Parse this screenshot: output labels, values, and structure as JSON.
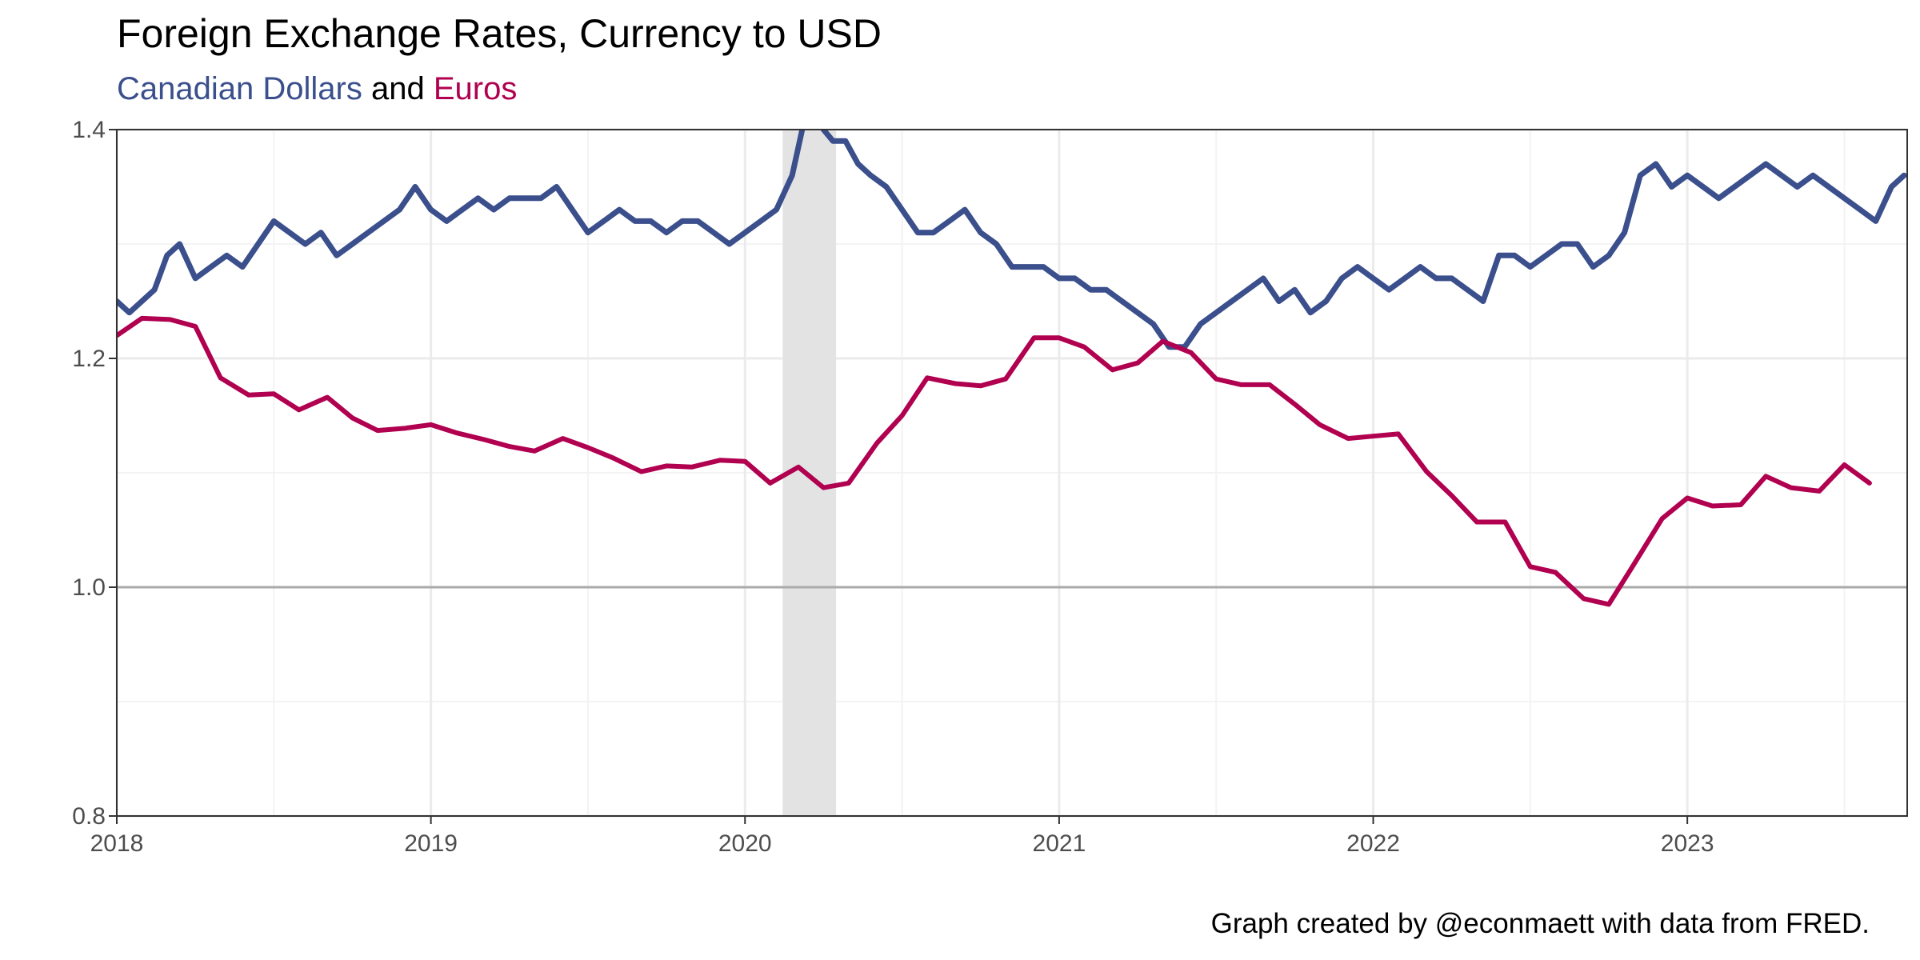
{
  "chart_data": {
    "type": "line",
    "title": "Foreign Exchange Rates, Currency to USD",
    "subtitle": {
      "series_a": "Canadian Dollars",
      "connector": "and",
      "series_b": "Euros"
    },
    "caption": "Graph created by @econmaett with data from FRED.",
    "xlabel": "",
    "ylabel": "",
    "xlim": [
      2018.0,
      2023.7
    ],
    "ylim": [
      0.8,
      1.4
    ],
    "x_ticks": [
      2018,
      2019,
      2020,
      2021,
      2022,
      2023
    ],
    "x_tick_labels": [
      "2018",
      "2019",
      "2020",
      "2021",
      "2022",
      "2023"
    ],
    "y_ticks": [
      0.8,
      1.0,
      1.2,
      1.4
    ],
    "y_tick_labels": [
      "0.8",
      "1.0",
      "1.2",
      "1.4"
    ],
    "reference_line": 1.0,
    "shaded_region": [
      2020.12,
      2020.29
    ],
    "grid": true,
    "legend": "subtitle",
    "colors": {
      "cad": "#3a4f8c",
      "eur": "#b0004f",
      "shade": "#e3e3e3",
      "reference": "#aaaaaa",
      "grid": "#ebebeb"
    },
    "series": [
      {
        "name": "Canadian Dollars",
        "x": [
          2018.0,
          2018.04,
          2018.08,
          2018.12,
          2018.16,
          2018.2,
          2018.25,
          2018.3,
          2018.35,
          2018.4,
          2018.45,
          2018.5,
          2018.55,
          2018.6,
          2018.65,
          2018.7,
          2018.75,
          2018.8,
          2018.85,
          2018.9,
          2018.95,
          2019.0,
          2019.05,
          2019.1,
          2019.15,
          2019.2,
          2019.25,
          2019.3,
          2019.35,
          2019.4,
          2019.45,
          2019.5,
          2019.55,
          2019.6,
          2019.65,
          2019.7,
          2019.75,
          2019.8,
          2019.85,
          2019.9,
          2019.95,
          2020.0,
          2020.05,
          2020.1,
          2020.15,
          2020.19,
          2020.22,
          2020.25,
          2020.28,
          2020.32,
          2020.36,
          2020.4,
          2020.45,
          2020.5,
          2020.55,
          2020.6,
          2020.65,
          2020.7,
          2020.75,
          2020.8,
          2020.85,
          2020.9,
          2020.95,
          2021.0,
          2021.05,
          2021.1,
          2021.15,
          2021.2,
          2021.25,
          2021.3,
          2021.35,
          2021.4,
          2021.45,
          2021.5,
          2021.55,
          2021.6,
          2021.65,
          2021.7,
          2021.75,
          2021.8,
          2021.85,
          2021.9,
          2021.95,
          2022.0,
          2022.05,
          2022.1,
          2022.15,
          2022.2,
          2022.25,
          2022.3,
          2022.35,
          2022.4,
          2022.45,
          2022.5,
          2022.55,
          2022.6,
          2022.65,
          2022.7,
          2022.75,
          2022.8,
          2022.85,
          2022.9,
          2022.95,
          2023.0,
          2023.05,
          2023.1,
          2023.15,
          2023.2,
          2023.25,
          2023.3,
          2023.35,
          2023.4,
          2023.45,
          2023.5,
          2023.55,
          2023.6,
          2023.65,
          2023.69
        ],
        "y": [
          1.25,
          1.24,
          1.25,
          1.26,
          1.29,
          1.3,
          1.27,
          1.28,
          1.29,
          1.28,
          1.3,
          1.32,
          1.31,
          1.3,
          1.31,
          1.29,
          1.3,
          1.31,
          1.32,
          1.33,
          1.35,
          1.33,
          1.32,
          1.33,
          1.34,
          1.33,
          1.34,
          1.34,
          1.34,
          1.35,
          1.33,
          1.31,
          1.32,
          1.33,
          1.32,
          1.32,
          1.31,
          1.32,
          1.32,
          1.31,
          1.3,
          1.31,
          1.32,
          1.33,
          1.36,
          1.41,
          1.42,
          1.4,
          1.39,
          1.39,
          1.37,
          1.36,
          1.35,
          1.33,
          1.31,
          1.31,
          1.32,
          1.33,
          1.31,
          1.3,
          1.28,
          1.28,
          1.28,
          1.27,
          1.27,
          1.26,
          1.26,
          1.25,
          1.24,
          1.23,
          1.21,
          1.21,
          1.23,
          1.24,
          1.25,
          1.26,
          1.27,
          1.25,
          1.26,
          1.24,
          1.25,
          1.27,
          1.28,
          1.27,
          1.26,
          1.27,
          1.28,
          1.27,
          1.27,
          1.26,
          1.25,
          1.29,
          1.29,
          1.28,
          1.29,
          1.3,
          1.3,
          1.28,
          1.29,
          1.31,
          1.36,
          1.37,
          1.35,
          1.36,
          1.35,
          1.34,
          1.35,
          1.36,
          1.37,
          1.36,
          1.35,
          1.36,
          1.35,
          1.34,
          1.33,
          1.32,
          1.35,
          1.36
        ]
      },
      {
        "name": "Euros",
        "x": [
          2018.0,
          2018.08,
          2018.17,
          2018.25,
          2018.33,
          2018.42,
          2018.5,
          2018.58,
          2018.67,
          2018.75,
          2018.83,
          2018.92,
          2019.0,
          2019.08,
          2019.17,
          2019.25,
          2019.33,
          2019.42,
          2019.5,
          2019.58,
          2019.67,
          2019.75,
          2019.83,
          2019.92,
          2020.0,
          2020.08,
          2020.17,
          2020.25,
          2020.33,
          2020.42,
          2020.5,
          2020.58,
          2020.67,
          2020.75,
          2020.83,
          2020.92,
          2021.0,
          2021.08,
          2021.17,
          2021.25,
          2021.33,
          2021.42,
          2021.5,
          2021.58,
          2021.67,
          2021.75,
          2021.83,
          2021.92,
          2022.0,
          2022.08,
          2022.17,
          2022.25,
          2022.33,
          2022.42,
          2022.5,
          2022.58,
          2022.67,
          2022.75,
          2022.83,
          2022.92,
          2023.0,
          2023.08,
          2023.17,
          2023.25,
          2023.33,
          2023.42,
          2023.5,
          2023.58
        ],
        "y": [
          1.22,
          1.235,
          1.234,
          1.228,
          1.183,
          1.168,
          1.169,
          1.155,
          1.166,
          1.148,
          1.137,
          1.139,
          1.142,
          1.135,
          1.129,
          1.123,
          1.119,
          1.13,
          1.122,
          1.113,
          1.101,
          1.106,
          1.105,
          1.111,
          1.11,
          1.091,
          1.105,
          1.087,
          1.091,
          1.126,
          1.15,
          1.183,
          1.178,
          1.176,
          1.182,
          1.218,
          1.218,
          1.21,
          1.19,
          1.196,
          1.215,
          1.205,
          1.182,
          1.177,
          1.177,
          1.16,
          1.142,
          1.13,
          1.132,
          1.134,
          1.101,
          1.08,
          1.057,
          1.057,
          1.018,
          1.013,
          0.99,
          0.985,
          1.02,
          1.06,
          1.078,
          1.071,
          1.072,
          1.097,
          1.087,
          1.084,
          1.107,
          1.091
        ]
      }
    ]
  }
}
